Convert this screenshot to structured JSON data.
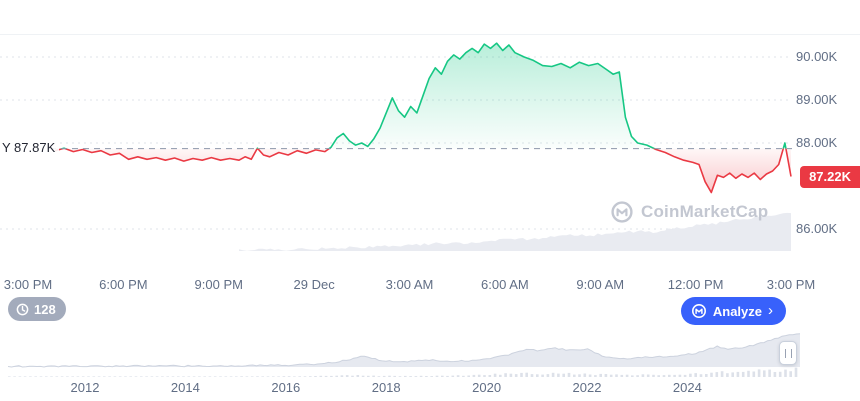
{
  "colors": {
    "green": "#16c784",
    "red": "#ea3943",
    "blue": "#3861fb",
    "axis_text": "#616e85",
    "grid": "#dfe3ea",
    "baseline_dash": "#8c96a9",
    "baseline_text": "#222531",
    "volume_fill": "#e9ebf1",
    "mini_fill": "#e6e9f0",
    "mini_stroke": "#ccd2de",
    "mini_volume": "#dde1e9",
    "watermark": "#c3c7d1",
    "pill_bg": "#a3abbc"
  },
  "badges": {
    "history_count": "128"
  },
  "buttons": {
    "analyze": {
      "label": "Analyze",
      "chevron": "›"
    }
  },
  "watermark": {
    "label": "CoinMarketCap"
  },
  "chart_data": {
    "type": "area",
    "title": "24h price chart with previous-close baseline",
    "baseline": {
      "value": 87.87,
      "label": "Y 87.87K"
    },
    "last_price": {
      "value": 87.22,
      "label": "87.22K"
    },
    "y_axis": {
      "ticks": [
        {
          "label": "90.00K",
          "value": 90
        },
        {
          "label": "89.00K",
          "value": 89
        },
        {
          "label": "88.00K",
          "value": 88
        },
        {
          "label": "86.00K",
          "value": 86
        }
      ],
      "range": [
        85.6,
        90.8
      ]
    },
    "x_axis": {
      "ticks": [
        "3:00 PM",
        "6:00 PM",
        "9:00 PM",
        "29 Dec",
        "3:00 AM",
        "6:00 AM",
        "9:00 AM",
        "12:00 PM",
        "3:00 PM"
      ],
      "hours_span": 24
    },
    "price_series": [
      [
        0,
        87.82
      ],
      [
        0.3,
        87.88
      ],
      [
        0.6,
        87.8
      ],
      [
        0.9,
        87.85
      ],
      [
        1.2,
        87.78
      ],
      [
        1.5,
        87.82
      ],
      [
        1.8,
        87.72
      ],
      [
        2.1,
        87.76
      ],
      [
        2.4,
        87.62
      ],
      [
        2.7,
        87.68
      ],
      [
        3,
        87.62
      ],
      [
        3.3,
        87.66
      ],
      [
        3.6,
        87.6
      ],
      [
        3.9,
        87.65
      ],
      [
        4.2,
        87.58
      ],
      [
        4.5,
        87.64
      ],
      [
        4.8,
        87.6
      ],
      [
        5.1,
        87.66
      ],
      [
        5.4,
        87.6
      ],
      [
        5.7,
        87.64
      ],
      [
        6,
        87.6
      ],
      [
        6.2,
        87.68
      ],
      [
        6.4,
        87.62
      ],
      [
        6.6,
        87.88
      ],
      [
        6.8,
        87.72
      ],
      [
        7,
        87.68
      ],
      [
        7.3,
        87.78
      ],
      [
        7.6,
        87.72
      ],
      [
        7.9,
        87.82
      ],
      [
        8.2,
        87.76
      ],
      [
        8.5,
        87.84
      ],
      [
        8.8,
        87.8
      ],
      [
        9,
        87.9
      ],
      [
        9.2,
        88.12
      ],
      [
        9.4,
        88.22
      ],
      [
        9.6,
        88.05
      ],
      [
        9.8,
        87.95
      ],
      [
        10,
        88.0
      ],
      [
        10.2,
        87.92
      ],
      [
        10.4,
        88.1
      ],
      [
        10.6,
        88.35
      ],
      [
        10.8,
        88.7
      ],
      [
        11,
        89.05
      ],
      [
        11.2,
        88.75
      ],
      [
        11.4,
        88.6
      ],
      [
        11.6,
        88.85
      ],
      [
        11.8,
        88.7
      ],
      [
        12,
        89.1
      ],
      [
        12.2,
        89.5
      ],
      [
        12.4,
        89.75
      ],
      [
        12.6,
        89.6
      ],
      [
        12.8,
        89.9
      ],
      [
        13,
        90.05
      ],
      [
        13.2,
        89.95
      ],
      [
        13.4,
        90.1
      ],
      [
        13.6,
        90.2
      ],
      [
        13.8,
        90.1
      ],
      [
        14,
        90.3
      ],
      [
        14.2,
        90.2
      ],
      [
        14.4,
        90.32
      ],
      [
        14.6,
        90.15
      ],
      [
        14.8,
        90.28
      ],
      [
        15,
        90.1
      ],
      [
        15.3,
        90.0
      ],
      [
        15.6,
        89.92
      ],
      [
        15.9,
        89.8
      ],
      [
        16.2,
        89.78
      ],
      [
        16.5,
        89.85
      ],
      [
        16.8,
        89.75
      ],
      [
        17.1,
        89.88
      ],
      [
        17.4,
        89.8
      ],
      [
        17.7,
        89.85
      ],
      [
        18,
        89.7
      ],
      [
        18.2,
        89.6
      ],
      [
        18.4,
        89.65
      ],
      [
        18.6,
        88.6
      ],
      [
        18.8,
        88.15
      ],
      [
        19,
        88.0
      ],
      [
        19.3,
        87.95
      ],
      [
        19.6,
        87.85
      ],
      [
        19.9,
        87.78
      ],
      [
        20.2,
        87.68
      ],
      [
        20.5,
        87.6
      ],
      [
        20.8,
        87.55
      ],
      [
        21,
        87.5
      ],
      [
        21.2,
        87.1
      ],
      [
        21.4,
        86.85
      ],
      [
        21.6,
        87.25
      ],
      [
        21.8,
        87.2
      ],
      [
        22,
        87.3
      ],
      [
        22.2,
        87.18
      ],
      [
        22.4,
        87.28
      ],
      [
        22.6,
        87.2
      ],
      [
        22.8,
        87.3
      ],
      [
        23,
        87.15
      ],
      [
        23.2,
        87.28
      ],
      [
        23.4,
        87.35
      ],
      [
        23.6,
        87.5
      ],
      [
        23.8,
        88.0
      ],
      [
        24,
        87.22
      ]
    ],
    "volume_series": [
      [
        6,
        0.02
      ],
      [
        7,
        0.03
      ],
      [
        8,
        0.05
      ],
      [
        9,
        0.07
      ],
      [
        10,
        0.1
      ],
      [
        11,
        0.13
      ],
      [
        12,
        0.17
      ],
      [
        13,
        0.22
      ],
      [
        13.5,
        0.2
      ],
      [
        14,
        0.27
      ],
      [
        15,
        0.32
      ],
      [
        15.5,
        0.3
      ],
      [
        16,
        0.36
      ],
      [
        17,
        0.42
      ],
      [
        17.5,
        0.4
      ],
      [
        18,
        0.47
      ],
      [
        19,
        0.52
      ],
      [
        19.5,
        0.5
      ],
      [
        20,
        0.58
      ],
      [
        20.5,
        0.62
      ],
      [
        21,
        0.68
      ],
      [
        21.5,
        0.72
      ],
      [
        22,
        0.8
      ],
      [
        22.5,
        0.84
      ],
      [
        23,
        0.9
      ],
      [
        23.5,
        0.95
      ],
      [
        24,
        1.0
      ]
    ],
    "overview": {
      "years": [
        "2012",
        "2014",
        "2016",
        "2018",
        "2020",
        "2022",
        "2024"
      ],
      "price_profile": [
        [
          0,
          0.02
        ],
        [
          0.08,
          0.02
        ],
        [
          0.16,
          0.03
        ],
        [
          0.24,
          0.03
        ],
        [
          0.3,
          0.04
        ],
        [
          0.36,
          0.06
        ],
        [
          0.4,
          0.1
        ],
        [
          0.43,
          0.22
        ],
        [
          0.45,
          0.33
        ],
        [
          0.47,
          0.2
        ],
        [
          0.5,
          0.16
        ],
        [
          0.53,
          0.22
        ],
        [
          0.56,
          0.16
        ],
        [
          0.6,
          0.22
        ],
        [
          0.63,
          0.35
        ],
        [
          0.655,
          0.55
        ],
        [
          0.67,
          0.48
        ],
        [
          0.69,
          0.58
        ],
        [
          0.71,
          0.5
        ],
        [
          0.73,
          0.55
        ],
        [
          0.755,
          0.3
        ],
        [
          0.78,
          0.26
        ],
        [
          0.81,
          0.3
        ],
        [
          0.84,
          0.33
        ],
        [
          0.87,
          0.42
        ],
        [
          0.895,
          0.62
        ],
        [
          0.91,
          0.55
        ],
        [
          0.93,
          0.6
        ],
        [
          0.95,
          0.72
        ],
        [
          0.97,
          0.88
        ],
        [
          0.985,
          0.96
        ],
        [
          1,
          1.0
        ]
      ],
      "volume_profile": [
        [
          0,
          0.02
        ],
        [
          0.1,
          0.03
        ],
        [
          0.2,
          0.04
        ],
        [
          0.3,
          0.06
        ],
        [
          0.38,
          0.08
        ],
        [
          0.43,
          0.2
        ],
        [
          0.47,
          0.12
        ],
        [
          0.5,
          0.1
        ],
        [
          0.55,
          0.14
        ],
        [
          0.6,
          0.2
        ],
        [
          0.645,
          0.45
        ],
        [
          0.68,
          0.35
        ],
        [
          0.71,
          0.4
        ],
        [
          0.74,
          0.3
        ],
        [
          0.78,
          0.22
        ],
        [
          0.82,
          0.26
        ],
        [
          0.86,
          0.3
        ],
        [
          0.9,
          0.5
        ],
        [
          0.94,
          0.6
        ],
        [
          0.97,
          0.75
        ],
        [
          1,
          0.9
        ]
      ]
    }
  }
}
